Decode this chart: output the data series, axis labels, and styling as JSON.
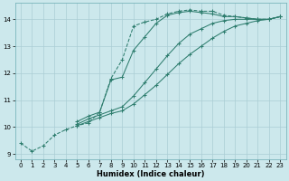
{
  "xlabel": "Humidex (Indice chaleur)",
  "xlim": [
    -0.5,
    23.5
  ],
  "ylim": [
    8.8,
    14.6
  ],
  "xticks": [
    0,
    1,
    2,
    3,
    4,
    5,
    6,
    7,
    8,
    9,
    10,
    11,
    12,
    13,
    14,
    15,
    16,
    17,
    18,
    19,
    20,
    21,
    22,
    23
  ],
  "yticks": [
    9,
    10,
    11,
    12,
    13,
    14
  ],
  "bg_color": "#cce8ec",
  "line_color": "#2e7d6e",
  "grid_color": "#aacdd4",
  "curves": [
    {
      "x": [
        0,
        1,
        2,
        3,
        4,
        5,
        6,
        7,
        8,
        9,
        10,
        11,
        12,
        13,
        14,
        15,
        16,
        17,
        18,
        19,
        20,
        21,
        22,
        23
      ],
      "y": [
        9.4,
        9.1,
        9.3,
        9.7,
        9.9,
        10.05,
        10.15,
        10.55,
        11.8,
        12.5,
        13.75,
        13.9,
        14.0,
        14.2,
        14.3,
        14.35,
        14.3,
        14.3,
        14.15,
        14.1,
        14.05,
        14.0,
        14.0,
        14.1
      ],
      "linestyle": "--"
    },
    {
      "x": [
        5,
        6,
        7,
        8,
        9,
        10,
        11,
        12,
        13,
        14,
        15,
        16,
        17,
        18,
        19,
        20,
        21,
        22,
        23
      ],
      "y": [
        10.2,
        10.4,
        10.55,
        11.75,
        11.85,
        12.85,
        13.35,
        13.85,
        14.15,
        14.25,
        14.3,
        14.25,
        14.2,
        14.1,
        14.1,
        14.05,
        14.0,
        14.0,
        14.1
      ],
      "linestyle": "-"
    },
    {
      "x": [
        5,
        6,
        7,
        8,
        9,
        10,
        11,
        12,
        13,
        14,
        15,
        16,
        17,
        18,
        19,
        20,
        21,
        22,
        23
      ],
      "y": [
        10.1,
        10.3,
        10.45,
        10.6,
        10.75,
        11.15,
        11.65,
        12.15,
        12.65,
        13.1,
        13.45,
        13.65,
        13.85,
        13.95,
        14.0,
        14.0,
        14.0,
        14.0,
        14.1
      ],
      "linestyle": "-"
    },
    {
      "x": [
        5,
        6,
        7,
        8,
        9,
        10,
        11,
        12,
        13,
        14,
        15,
        16,
        17,
        18,
        19,
        20,
        21,
        22,
        23
      ],
      "y": [
        10.05,
        10.2,
        10.35,
        10.5,
        10.6,
        10.85,
        11.2,
        11.55,
        11.95,
        12.35,
        12.7,
        13.0,
        13.3,
        13.55,
        13.75,
        13.85,
        13.95,
        14.0,
        14.1
      ],
      "linestyle": "-"
    }
  ]
}
